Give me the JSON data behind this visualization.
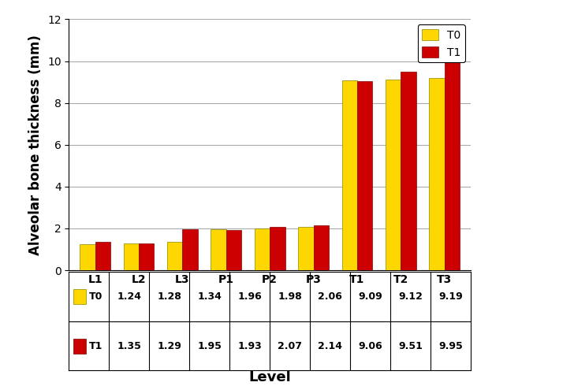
{
  "categories": [
    "L1",
    "L2",
    "L3",
    "P1",
    "P2",
    "P3",
    "T1",
    "T2",
    "T3"
  ],
  "T0_values": [
    1.24,
    1.28,
    1.34,
    1.96,
    1.98,
    2.06,
    9.09,
    9.12,
    9.19
  ],
  "T1_values": [
    1.35,
    1.29,
    1.95,
    1.93,
    2.07,
    2.14,
    9.06,
    9.51,
    9.95
  ],
  "T0_color": "#FFD700",
  "T1_color": "#CC0000",
  "T0_label": "T0",
  "T1_label": "T1",
  "ylabel": "Alveolar bone thickness (mm)",
  "xlabel": "Level",
  "ylim": [
    0,
    12
  ],
  "yticks": [
    0,
    2,
    4,
    6,
    8,
    10,
    12
  ],
  "bar_width": 0.35,
  "legend_fontsize": 10,
  "axis_label_fontsize": 12,
  "tick_fontsize": 10,
  "table_fontsize": 9,
  "grid_color": "#aaaaaa"
}
